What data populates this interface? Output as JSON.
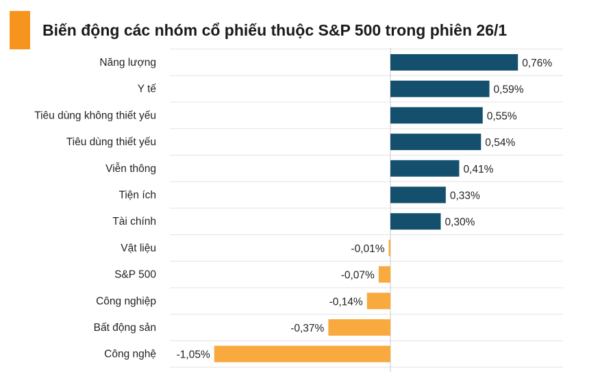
{
  "chart_data": {
    "type": "bar",
    "orientation": "horizontal",
    "title": "Biến động các nhóm cổ phiếu thuộc S&P 500 trong phiên 26/1",
    "categories": [
      "Năng lượng",
      "Y tế",
      "Tiêu dùng không thiết yếu",
      "Tiêu dùng thiết yếu",
      "Viễn thông",
      "Tiện ích",
      "Tài chính",
      "Vật liệu",
      "S&P 500",
      "Công nghiệp",
      "Bất động sản",
      "Công nghệ"
    ],
    "values": [
      0.76,
      0.59,
      0.55,
      0.54,
      0.41,
      0.33,
      0.3,
      -0.01,
      -0.07,
      -0.14,
      -0.37,
      -1.05
    ],
    "value_labels": [
      "0,76%",
      "0,59%",
      "0,55%",
      "0,54%",
      "0,41%",
      "0,33%",
      "0,30%",
      "-0,01%",
      "-0,07%",
      "-0,14%",
      "-0,37%",
      "-1,05%"
    ],
    "colors": {
      "positive": "#14506e",
      "negative": "#f8aa3f",
      "accent": "#f7941d",
      "grid": "#e3e3e3",
      "axis": "#c8c8c8"
    },
    "grid": true,
    "legend": "none"
  }
}
